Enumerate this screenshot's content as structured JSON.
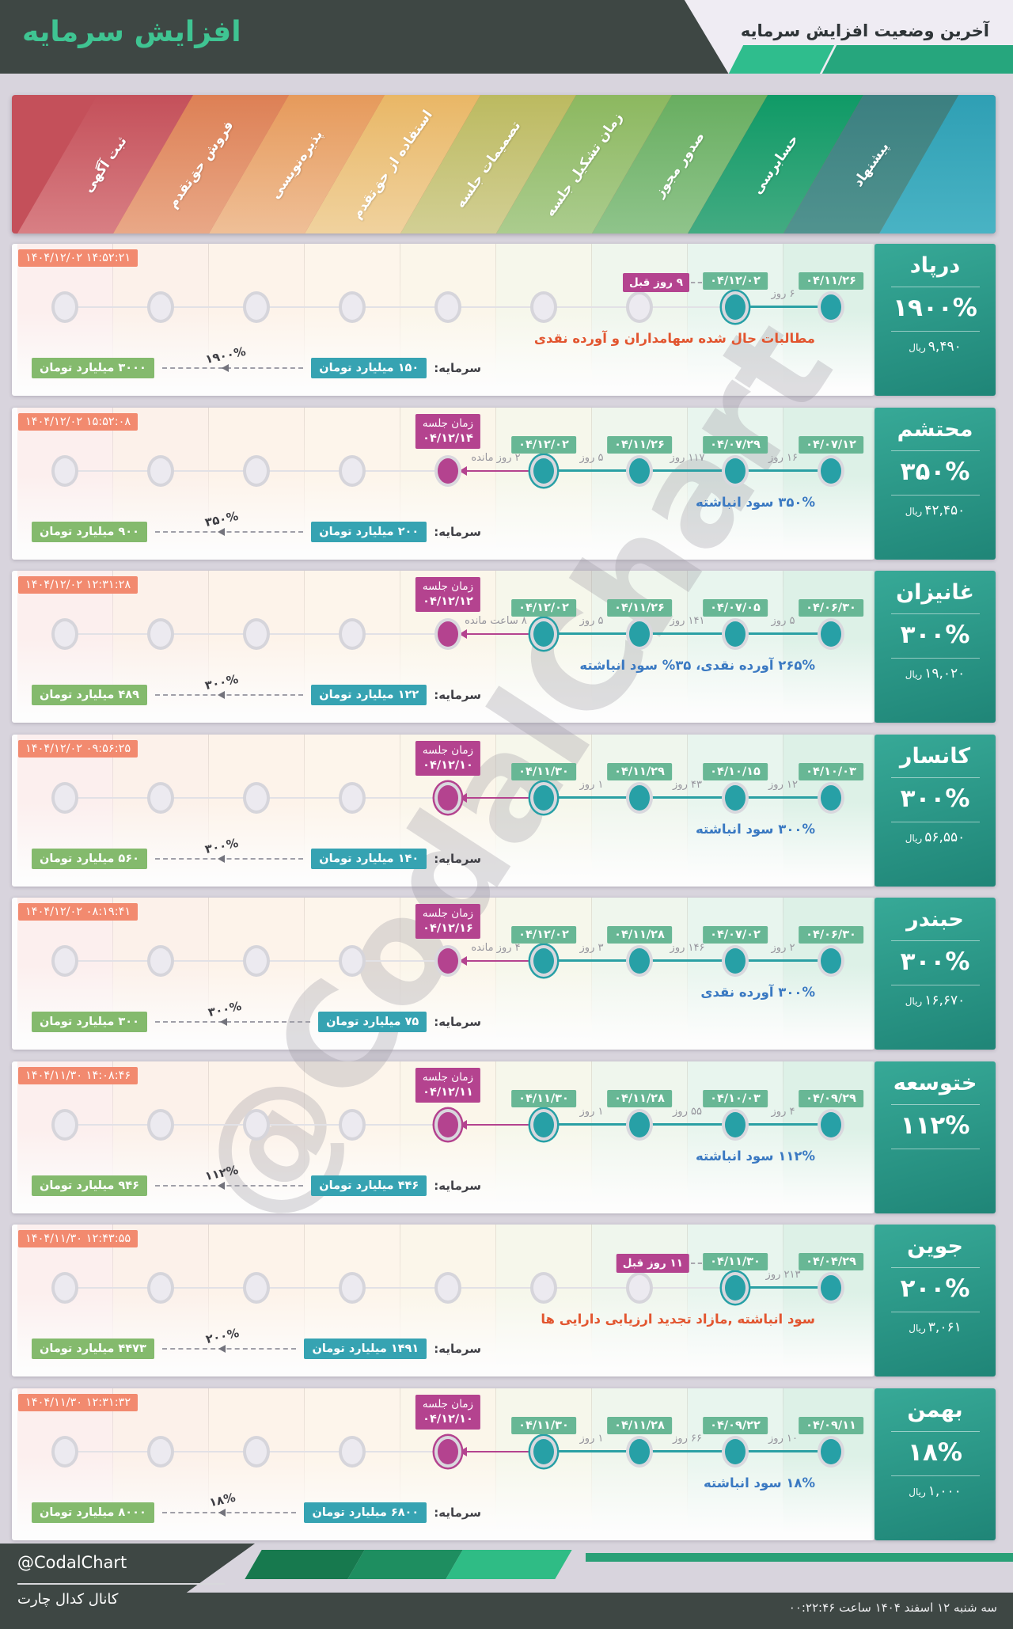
{
  "header": {
    "title": "افزایش سرمایه",
    "subtitle": "آخرین وضعیت افزایش سرمایه"
  },
  "labels": {
    "capital": "سرمایه:",
    "meeting": "زمان جلسه",
    "rial": "ریال"
  },
  "watermark": "@CodalChart",
  "stages": [
    {
      "label": "ثبت آگهی",
      "color_top": "#c4505a",
      "color_bottom": "#d87f84"
    },
    {
      "label": "فروش حق‌تقدم",
      "color_top": "#dd8055",
      "color_bottom": "#e9a887"
    },
    {
      "label": "پذیره‌نویسی",
      "color_top": "#e69a5b",
      "color_bottom": "#efbf97"
    },
    {
      "label": "استفاده از حق‌تقدم",
      "color_top": "#e9b766",
      "color_bottom": "#f0d29e"
    },
    {
      "label": "تصمیمات جلسه",
      "color_top": "#bcba60",
      "color_bottom": "#d2cf94"
    },
    {
      "label": "زمان تشکیل جلسه",
      "color_top": "#8cb85f",
      "color_bottom": "#abcc8e"
    },
    {
      "label": "صدور مجوز",
      "color_top": "#68ae60",
      "color_bottom": "#8fc48b"
    },
    {
      "label": "حسابرسی",
      "color_top": "#0f9a66",
      "color_bottom": "#43ab82"
    },
    {
      "label": "پیشنهاد",
      "color_top": "#3b7f80",
      "color_bottom": "#51938f"
    }
  ],
  "banner_end_color_top": "#2f9fb4",
  "banner_end_color_bottom": "#49b3c4",
  "column_tints": [
    "#fcefee",
    "#fcf1ea",
    "#fdf3ea",
    "#fdf5eb",
    "#fbf6ea",
    "#f6f7eb",
    "#eff6ed",
    "#e8f5ee",
    "#ddf1e7"
  ],
  "colors": {
    "page_bg": "#d8d4dd",
    "header_bg": "#3e4744",
    "header_light": "#efecf3",
    "accent_green": "#3fc492",
    "date_badge": "#68b795",
    "meeting_badge": "#b4438f",
    "timestamp_badge": "#f28a6f",
    "capital_from_badge": "#36a3b2",
    "capital_to_badge": "#84ba6d",
    "dot_teal": "#27a0a6",
    "dot_magenta": "#b4438f",
    "desc_red": "#e2552f",
    "desc_blue": "#3a79c2",
    "card_gradient_top": "#37a997",
    "card_gradient_bottom": "#1f8577"
  },
  "companies": [
    {
      "name": "درپاد",
      "percent": "۱۹۰۰%",
      "price": "۹,۴۹۰",
      "timestamp": "۱۴۰۴/۱۲/۰۲ ۱۴:۵۲:۲۱",
      "description": "مطالبات حال شده سهامداران و آورده نقدی",
      "description_color": "#e2552f",
      "capital_from": "۱۵۰ میلیارد تومان",
      "capital_to": "۳۰۰۰ میلیارد تومان",
      "capital_percent": "۱۹۰۰%",
      "events": [
        {
          "col": 8,
          "date": "۰۴/۱۱/۲۶"
        },
        {
          "col": 7,
          "date": "۰۴/۱۲/۰۲",
          "current": true,
          "ago": "۹ روز قبل"
        }
      ],
      "gaps": [
        {
          "a": 7,
          "b": 8,
          "label": "۶ روز"
        }
      ]
    },
    {
      "name": "محتشم",
      "percent": "۳۵۰%",
      "price": "۴۲,۴۵۰",
      "timestamp": "۱۴۰۴/۱۲/۰۲ ۱۵:۵۲:۰۸",
      "description": "۳۵۰% سود انباشته",
      "description_color": "#3a79c2",
      "capital_from": "۲۰۰ میلیارد تومان",
      "capital_to": "۹۰۰ میلیارد تومان",
      "capital_percent": "۳۵۰%",
      "meeting": {
        "col": 4,
        "date": "۰۴/۱۲/۱۴"
      },
      "events": [
        {
          "col": 8,
          "date": "۰۴/۰۷/۱۲"
        },
        {
          "col": 7,
          "date": "۰۴/۰۷/۲۹"
        },
        {
          "col": 6,
          "date": "۰۴/۱۱/۲۶"
        },
        {
          "col": 5,
          "date": "۰۴/۱۲/۰۲",
          "current": true
        }
      ],
      "gaps": [
        {
          "a": 7,
          "b": 8,
          "label": "۱۶ روز"
        },
        {
          "a": 6,
          "b": 7,
          "label": "۱۱۷ روز"
        },
        {
          "a": 5,
          "b": 6,
          "label": "۵ روز"
        },
        {
          "a": 4,
          "b": 5,
          "label": "۲ روز مانده"
        }
      ]
    },
    {
      "name": "غانیزان",
      "percent": "۳۰۰%",
      "price": "۱۹,۰۲۰",
      "timestamp": "۱۴۰۴/۱۲/۰۲ ۱۲:۳۱:۲۸",
      "description": "۲۶۵% آورده نقدی، ۳۵% سود انباشته",
      "description_color": "#3a79c2",
      "capital_from": "۱۲۲ میلیارد تومان",
      "capital_to": "۴۸۹ میلیارد تومان",
      "capital_percent": "۳۰۰%",
      "meeting": {
        "col": 4,
        "date": "۰۴/۱۲/۱۲"
      },
      "events": [
        {
          "col": 8,
          "date": "۰۴/۰۶/۳۰"
        },
        {
          "col": 7,
          "date": "۰۴/۰۷/۰۵"
        },
        {
          "col": 6,
          "date": "۰۴/۱۱/۲۶"
        },
        {
          "col": 5,
          "date": "۰۴/۱۲/۰۲",
          "current": true
        }
      ],
      "gaps": [
        {
          "a": 7,
          "b": 8,
          "label": "۵ روز"
        },
        {
          "a": 6,
          "b": 7,
          "label": "۱۴۱ روز"
        },
        {
          "a": 5,
          "b": 6,
          "label": "۵ روز"
        },
        {
          "a": 4,
          "b": 5,
          "label": "۸ ساعت مانده"
        }
      ]
    },
    {
      "name": "کانسار",
      "percent": "۳۰۰%",
      "price": "۵۶,۵۵۰",
      "timestamp": "۱۴۰۴/۱۲/۰۲ ۰۹:۵۶:۲۵",
      "description": "۳۰۰% سود انباشته",
      "description_color": "#3a79c2",
      "capital_from": "۱۴۰ میلیارد تومان",
      "capital_to": "۵۶۰ میلیارد تومان",
      "capital_percent": "۳۰۰%",
      "meeting": {
        "col": 4,
        "date": "۰۴/۱۲/۱۰",
        "current": true
      },
      "events": [
        {
          "col": 8,
          "date": "۰۴/۱۰/۰۳"
        },
        {
          "col": 7,
          "date": "۰۴/۱۰/۱۵"
        },
        {
          "col": 6,
          "date": "۰۴/۱۱/۲۹"
        },
        {
          "col": 5,
          "date": "۰۴/۱۱/۳۰",
          "current": true
        }
      ],
      "gaps": [
        {
          "a": 7,
          "b": 8,
          "label": "۱۲ روز"
        },
        {
          "a": 6,
          "b": 7,
          "label": "۴۳ روز"
        },
        {
          "a": 5,
          "b": 6,
          "label": "۱ روز"
        }
      ]
    },
    {
      "name": "حبندر",
      "percent": "۳۰۰%",
      "price": "۱۶,۶۷۰",
      "timestamp": "۱۴۰۴/۱۲/۰۲ ۰۸:۱۹:۴۱",
      "description": "۳۰۰% آورده نقدی",
      "description_color": "#3a79c2",
      "capital_from": "۷۵ میلیارد تومان",
      "capital_to": "۳۰۰ میلیارد تومان",
      "capital_percent": "۳۰۰%",
      "meeting": {
        "col": 4,
        "date": "۰۴/۱۲/۱۶"
      },
      "events": [
        {
          "col": 8,
          "date": "۰۴/۰۶/۳۰"
        },
        {
          "col": 7,
          "date": "۰۴/۰۷/۰۲"
        },
        {
          "col": 6,
          "date": "۰۴/۱۱/۲۸"
        },
        {
          "col": 5,
          "date": "۰۴/۱۲/۰۲",
          "current": true
        }
      ],
      "gaps": [
        {
          "a": 7,
          "b": 8,
          "label": "۲ روز"
        },
        {
          "a": 6,
          "b": 7,
          "label": "۱۴۶ روز"
        },
        {
          "a": 5,
          "b": 6,
          "label": "۳ روز"
        },
        {
          "a": 4,
          "b": 5,
          "label": "۴ روز مانده"
        }
      ]
    },
    {
      "name": "ختوسعه",
      "percent": "۱۱۲%",
      "price": "",
      "timestamp": "۱۴۰۴/۱۱/۳۰ ۱۴:۰۸:۴۶",
      "description": "۱۱۲% سود انباشته",
      "description_color": "#3a79c2",
      "capital_from": "۴۴۶ میلیارد تومان",
      "capital_to": "۹۴۶ میلیارد تومان",
      "capital_percent": "۱۱۲%",
      "meeting": {
        "col": 4,
        "date": "۰۴/۱۲/۱۱",
        "current": true
      },
      "events": [
        {
          "col": 8,
          "date": "۰۴/۰۹/۲۹"
        },
        {
          "col": 7,
          "date": "۰۴/۱۰/۰۳"
        },
        {
          "col": 6,
          "date": "۰۴/۱۱/۲۸"
        },
        {
          "col": 5,
          "date": "۰۴/۱۱/۳۰",
          "current": true
        }
      ],
      "gaps": [
        {
          "a": 7,
          "b": 8,
          "label": "۴ روز"
        },
        {
          "a": 6,
          "b": 7,
          "label": "۵۵ روز"
        },
        {
          "a": 5,
          "b": 6,
          "label": "۱ روز"
        }
      ]
    },
    {
      "name": "جوین",
      "percent": "۲۰۰%",
      "price": "۳,۰۶۱",
      "timestamp": "۱۴۰۴/۱۱/۳۰ ۱۲:۴۳:۵۵",
      "description": "سود انباشته ,مازاد تجدید ارزیابی دارایی ها",
      "description_color": "#e2552f",
      "capital_from": "۱۴۹۱ میلیارد تومان",
      "capital_to": "۴۴۷۳ میلیارد تومان",
      "capital_percent": "۲۰۰%",
      "events": [
        {
          "col": 8,
          "date": "۰۴/۰۴/۲۹"
        },
        {
          "col": 7,
          "date": "۰۴/۱۱/۳۰",
          "current": true,
          "ago": "۱۱ روز قبل"
        }
      ],
      "gaps": [
        {
          "a": 7,
          "b": 8,
          "label": "۲۱۳ روز"
        }
      ]
    },
    {
      "name": "بهمن",
      "percent": "۱۸%",
      "price": "۱,۰۰۰",
      "timestamp": "۱۴۰۴/۱۱/۳۰ ۱۲:۳۱:۳۲",
      "description": "۱۸% سود انباشته",
      "description_color": "#3a79c2",
      "capital_from": "۶۸۰۰ میلیارد تومان",
      "capital_to": "۸۰۰۰ میلیارد تومان",
      "capital_percent": "۱۸%",
      "meeting": {
        "col": 4,
        "date": "۰۴/۱۲/۱۰",
        "current": true
      },
      "events": [
        {
          "col": 8,
          "date": "۰۴/۰۹/۱۱"
        },
        {
          "col": 7,
          "date": "۰۴/۰۹/۲۲"
        },
        {
          "col": 6,
          "date": "۰۴/۱۱/۲۸"
        },
        {
          "col": 5,
          "date": "۰۴/۱۱/۳۰",
          "current": true
        }
      ],
      "gaps": [
        {
          "a": 7,
          "b": 8,
          "label": "۱۰ روز"
        },
        {
          "a": 6,
          "b": 7,
          "label": "۶۶ روز"
        },
        {
          "a": 5,
          "b": 6,
          "label": "۱ روز"
        }
      ]
    }
  ],
  "footer": {
    "handle": "@CodalChart",
    "channel": "کانال کدال چارت",
    "datetime": "سه شنبه ۱۲ اسفند ۱۴۰۴ ساعت ۰۰:۲۲:۴۶"
  }
}
